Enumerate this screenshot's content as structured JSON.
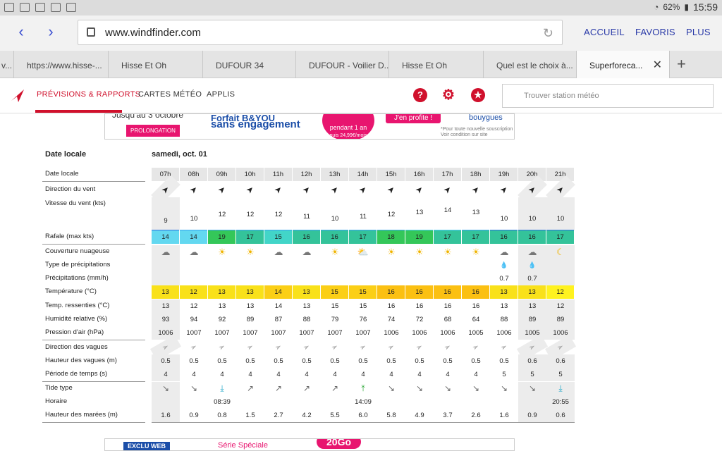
{
  "statusbar": {
    "battery": "62%",
    "time": "15:59"
  },
  "browser": {
    "url": "www.windfinder.com",
    "nav": [
      "ACCUEIL",
      "FAVORIS",
      "PLUS"
    ],
    "tabs": [
      {
        "label": "v...",
        "active": false
      },
      {
        "label": "https://www.hisse-...",
        "active": false
      },
      {
        "label": "Hisse Et Oh",
        "active": false
      },
      {
        "label": "DUFOUR 34",
        "active": false
      },
      {
        "label": "DUFOUR - Voilier D...",
        "active": false
      },
      {
        "label": "Hisse Et Oh",
        "active": false
      },
      {
        "label": "Quel est le choix à...",
        "active": false
      },
      {
        "label": "Superforeca...",
        "active": true
      }
    ]
  },
  "site": {
    "nav": [
      "PRÉVISIONS & RAPPORTS",
      "CARTES MÉTÉO",
      "APPLIS"
    ],
    "search_placeholder": "Trouver station météo"
  },
  "ad_top": {
    "line1": "Jusqu'au 3 octobre",
    "promo": "PROLONGATION",
    "headline1": "Forfait B&YOU",
    "headline2": "sans engagement",
    "price": "pendant 1 an",
    "price_sub": "puis 24,99€/mois",
    "cta": "J'en profite !",
    "brand": "bouygues",
    "fine1": "*Pour toute nouvelle souscription",
    "fine2": "Voir condition sur site"
  },
  "ad_bottom": {
    "tag": "EXCLU WEB",
    "text": "Série Spéciale",
    "badge": "20Go"
  },
  "forecast": {
    "header_label": "Date locale",
    "header_date": "samedi, oct. 01",
    "hours": [
      "07h",
      "08h",
      "09h",
      "10h",
      "11h",
      "12h",
      "13h",
      "14h",
      "15h",
      "16h",
      "17h",
      "18h",
      "19h",
      "20h",
      "21h"
    ],
    "rows": {
      "local_date": "Date locale",
      "wind_dir": "Direction du vent",
      "wind_speed": "Vitesse du vent  (kts)",
      "gust": "Rafale  (max kts)",
      "cloud": "Couverture nuageuse",
      "precip_type": "Type de précipitations",
      "precip": "Précipitations  (mm/h)",
      "temp": "Température  (°C)",
      "feels": "Temp. ressenties  (°C)",
      "humidity": "Humidité relative  (%)",
      "pressure": "Pression d'air  (hPa)",
      "wave_dir": "Direction des vagues",
      "wave_height": "Hauteur des vagues  (m)",
      "wave_period": "Période de temps  (s)",
      "tide_type": "Tide type",
      "tide_time": "Horaire",
      "tide_height": "Hauteur des marées  (m)"
    },
    "wind_speed": [
      9,
      10,
      12,
      12,
      12,
      11,
      10,
      11,
      12,
      13,
      14,
      13,
      10,
      10,
      10
    ],
    "gust": [
      14,
      14,
      19,
      17,
      15,
      16,
      16,
      17,
      18,
      19,
      17,
      17,
      16,
      16,
      17
    ],
    "gust_colors": [
      "#63d8f0",
      "#63d8f0",
      "#34c759",
      "#34c39a",
      "#42d5c8",
      "#34c39a",
      "#34c39a",
      "#34c39a",
      "#34c759",
      "#34c759",
      "#34c39a",
      "#34c39a",
      "#34c39a",
      "#34c39a",
      "#34c39a"
    ],
    "bar_colors": [
      "#2a6fe0",
      "#39a4f0",
      "#39a4f0",
      "#39a4f0",
      "#39a4f0",
      "#39a4f0",
      "#39a4f0",
      "#39a4f0",
      "#39a4f0",
      "#49c9f5",
      "#49c9f5",
      "#39a4f0",
      "#2a6fe0",
      "#2a6fe0",
      "#2a6fe0"
    ],
    "cloud_icons": [
      "☁",
      "☁",
      "☀",
      "☀",
      "☁",
      "☁",
      "☀",
      "⛅",
      "☀",
      "☀",
      "☀",
      "☀",
      "☁",
      "☁",
      "☾"
    ],
    "precip_type_icons": [
      "",
      "",
      "",
      "",
      "",
      "",
      "",
      "",
      "",
      "",
      "",
      "",
      "💧",
      "💧",
      ""
    ],
    "precip": [
      "",
      "",
      "",
      "",
      "",
      "",
      "",
      "",
      "",
      "",
      "",
      "",
      "0.7",
      "0.7",
      ""
    ],
    "temp": [
      13,
      12,
      13,
      13,
      14,
      13,
      15,
      15,
      16,
      16,
      16,
      16,
      13,
      13,
      12
    ],
    "temp_colors": [
      "#f9e11a",
      "#f9e11a",
      "#f9e11a",
      "#f9e11a",
      "#fbcf16",
      "#f9e11a",
      "#fbcf16",
      "#fbcf16",
      "#fbc012",
      "#fbc012",
      "#fbc012",
      "#fbc012",
      "#f9e11a",
      "#f9e11a",
      "#fff21f"
    ],
    "feels": [
      13,
      12,
      13,
      13,
      14,
      13,
      15,
      15,
      16,
      16,
      16,
      16,
      13,
      13,
      12
    ],
    "humidity": [
      93,
      94,
      92,
      89,
      87,
      88,
      79,
      76,
      74,
      72,
      68,
      64,
      88,
      89,
      89
    ],
    "pressure": [
      1006,
      1007,
      1007,
      1007,
      1007,
      1007,
      1007,
      1007,
      1006,
      1006,
      1006,
      1005,
      1006,
      1005,
      1006
    ],
    "wave_height": [
      "0.5",
      "0.5",
      "0.5",
      "0.5",
      "0.5",
      "0.5",
      "0.5",
      "0.5",
      "0.5",
      "0.5",
      "0.5",
      "0.5",
      "0.5",
      "0.6",
      "0.6"
    ],
    "wave_period": [
      4,
      4,
      4,
      4,
      4,
      4,
      4,
      4,
      4,
      4,
      4,
      4,
      5,
      5,
      5
    ],
    "tide_icons": [
      "↘",
      "↘",
      "⤓",
      "↗",
      "↗",
      "↗",
      "↗",
      "⤒",
      "↘",
      "↘",
      "↘",
      "↘",
      "↘",
      "↘",
      "⤓"
    ],
    "tide_time": [
      "",
      "",
      "08:39",
      "",
      "",
      "",
      "",
      "14:09",
      "",
      "",
      "",
      "",
      "",
      "",
      "20:55"
    ],
    "tide_height": [
      "1.6",
      "0.9",
      "0.8",
      "1.5",
      "2.7",
      "4.2",
      "5.5",
      "6.0",
      "5.8",
      "4.9",
      "3.7",
      "2.6",
      "1.6",
      "0.9",
      "0.6"
    ]
  }
}
